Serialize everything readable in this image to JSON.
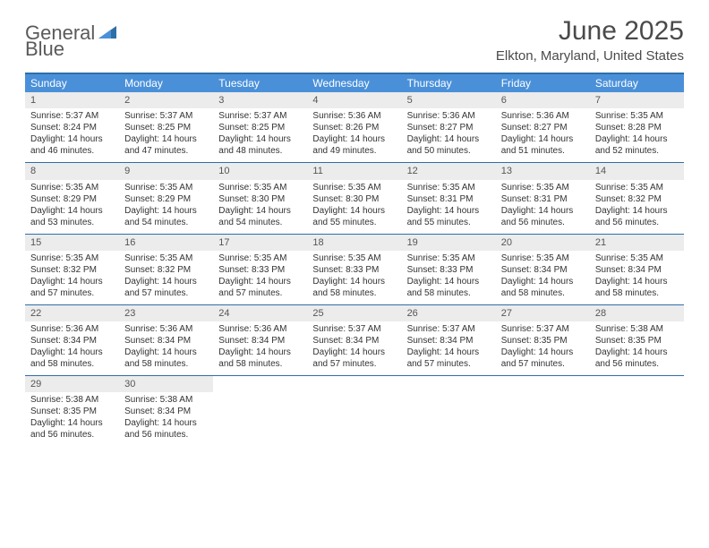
{
  "brand": {
    "part1": "General",
    "part2": "Blue"
  },
  "title": "June 2025",
  "location": "Elkton, Maryland, United States",
  "colors": {
    "header_bg": "#4a90d9",
    "header_text": "#ffffff",
    "rule": "#2f6fa8",
    "daynum_bg": "#ececec",
    "logo_gray": "#5a5a5a",
    "logo_blue": "#3b7fb8"
  },
  "weekdays": [
    "Sunday",
    "Monday",
    "Tuesday",
    "Wednesday",
    "Thursday",
    "Friday",
    "Saturday"
  ],
  "days": [
    {
      "n": 1,
      "sunrise": "5:37 AM",
      "sunset": "8:24 PM",
      "daylight": "14 hours and 46 minutes."
    },
    {
      "n": 2,
      "sunrise": "5:37 AM",
      "sunset": "8:25 PM",
      "daylight": "14 hours and 47 minutes."
    },
    {
      "n": 3,
      "sunrise": "5:37 AM",
      "sunset": "8:25 PM",
      "daylight": "14 hours and 48 minutes."
    },
    {
      "n": 4,
      "sunrise": "5:36 AM",
      "sunset": "8:26 PM",
      "daylight": "14 hours and 49 minutes."
    },
    {
      "n": 5,
      "sunrise": "5:36 AM",
      "sunset": "8:27 PM",
      "daylight": "14 hours and 50 minutes."
    },
    {
      "n": 6,
      "sunrise": "5:36 AM",
      "sunset": "8:27 PM",
      "daylight": "14 hours and 51 minutes."
    },
    {
      "n": 7,
      "sunrise": "5:35 AM",
      "sunset": "8:28 PM",
      "daylight": "14 hours and 52 minutes."
    },
    {
      "n": 8,
      "sunrise": "5:35 AM",
      "sunset": "8:29 PM",
      "daylight": "14 hours and 53 minutes."
    },
    {
      "n": 9,
      "sunrise": "5:35 AM",
      "sunset": "8:29 PM",
      "daylight": "14 hours and 54 minutes."
    },
    {
      "n": 10,
      "sunrise": "5:35 AM",
      "sunset": "8:30 PM",
      "daylight": "14 hours and 54 minutes."
    },
    {
      "n": 11,
      "sunrise": "5:35 AM",
      "sunset": "8:30 PM",
      "daylight": "14 hours and 55 minutes."
    },
    {
      "n": 12,
      "sunrise": "5:35 AM",
      "sunset": "8:31 PM",
      "daylight": "14 hours and 55 minutes."
    },
    {
      "n": 13,
      "sunrise": "5:35 AM",
      "sunset": "8:31 PM",
      "daylight": "14 hours and 56 minutes."
    },
    {
      "n": 14,
      "sunrise": "5:35 AM",
      "sunset": "8:32 PM",
      "daylight": "14 hours and 56 minutes."
    },
    {
      "n": 15,
      "sunrise": "5:35 AM",
      "sunset": "8:32 PM",
      "daylight": "14 hours and 57 minutes."
    },
    {
      "n": 16,
      "sunrise": "5:35 AM",
      "sunset": "8:32 PM",
      "daylight": "14 hours and 57 minutes."
    },
    {
      "n": 17,
      "sunrise": "5:35 AM",
      "sunset": "8:33 PM",
      "daylight": "14 hours and 57 minutes."
    },
    {
      "n": 18,
      "sunrise": "5:35 AM",
      "sunset": "8:33 PM",
      "daylight": "14 hours and 58 minutes."
    },
    {
      "n": 19,
      "sunrise": "5:35 AM",
      "sunset": "8:33 PM",
      "daylight": "14 hours and 58 minutes."
    },
    {
      "n": 20,
      "sunrise": "5:35 AM",
      "sunset": "8:34 PM",
      "daylight": "14 hours and 58 minutes."
    },
    {
      "n": 21,
      "sunrise": "5:35 AM",
      "sunset": "8:34 PM",
      "daylight": "14 hours and 58 minutes."
    },
    {
      "n": 22,
      "sunrise": "5:36 AM",
      "sunset": "8:34 PM",
      "daylight": "14 hours and 58 minutes."
    },
    {
      "n": 23,
      "sunrise": "5:36 AM",
      "sunset": "8:34 PM",
      "daylight": "14 hours and 58 minutes."
    },
    {
      "n": 24,
      "sunrise": "5:36 AM",
      "sunset": "8:34 PM",
      "daylight": "14 hours and 58 minutes."
    },
    {
      "n": 25,
      "sunrise": "5:37 AM",
      "sunset": "8:34 PM",
      "daylight": "14 hours and 57 minutes."
    },
    {
      "n": 26,
      "sunrise": "5:37 AM",
      "sunset": "8:34 PM",
      "daylight": "14 hours and 57 minutes."
    },
    {
      "n": 27,
      "sunrise": "5:37 AM",
      "sunset": "8:35 PM",
      "daylight": "14 hours and 57 minutes."
    },
    {
      "n": 28,
      "sunrise": "5:38 AM",
      "sunset": "8:35 PM",
      "daylight": "14 hours and 56 minutes."
    },
    {
      "n": 29,
      "sunrise": "5:38 AM",
      "sunset": "8:35 PM",
      "daylight": "14 hours and 56 minutes."
    },
    {
      "n": 30,
      "sunrise": "5:38 AM",
      "sunset": "8:34 PM",
      "daylight": "14 hours and 56 minutes."
    }
  ],
  "labels": {
    "sunrise": "Sunrise: ",
    "sunset": "Sunset: ",
    "daylight": "Daylight: "
  },
  "layout": {
    "first_weekday_index": 0,
    "total_cells": 35
  }
}
